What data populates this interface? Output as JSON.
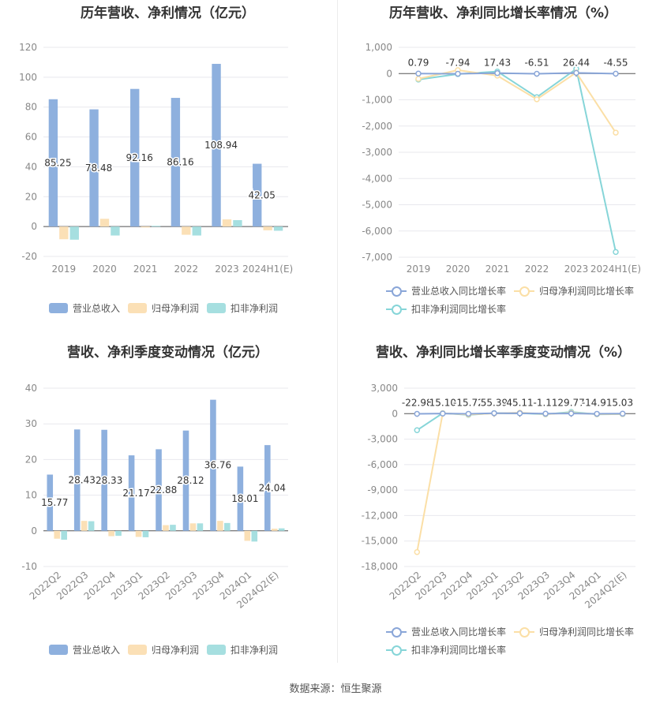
{
  "source": "数据来源：恒生聚源",
  "colors": {
    "revenue": "#8eb0de",
    "net_profit": "#fbe0b6",
    "deducted": "#a6dfe0",
    "rev_line": "#8aa6d8",
    "np_line": "#fbdfa6",
    "dd_line": "#86d5d8",
    "grid": "#e8e8ee",
    "axis_text": "#888888",
    "label": "#333333"
  },
  "legends": {
    "bar": [
      "营业总收入",
      "归母净利润",
      "扣非净利润"
    ],
    "line": [
      "营业总收入同比增长率",
      "归母净利润同比增长率",
      "扣非净利润同比增长率"
    ]
  },
  "chart_data": [
    {
      "type": "bar",
      "title": "历年营收、净利情况（亿元）",
      "categories": [
        "2019",
        "2020",
        "2021",
        "2022",
        "2023",
        "2024H1(E)"
      ],
      "ylim": [
        -20,
        120
      ],
      "yticks": [
        -20,
        0,
        20,
        40,
        60,
        80,
        100,
        120
      ],
      "grid": true,
      "legend_position": "bottom",
      "series": [
        {
          "name": "营业总收入",
          "values": [
            85.25,
            78.48,
            92.16,
            86.16,
            108.94,
            42.05
          ],
          "labels": [
            "85.25",
            "78.48",
            "92.16",
            "86.16",
            "108.94",
            "42.05"
          ]
        },
        {
          "name": "归母净利润",
          "values": [
            -8.5,
            5.2,
            -0.6,
            -5.5,
            4.8,
            -2.5
          ]
        },
        {
          "name": "扣非净利润",
          "values": [
            -8.8,
            -6.0,
            0.5,
            -6.0,
            4.3,
            -2.8
          ]
        }
      ]
    },
    {
      "type": "line",
      "title": "历年营收、净利同比增长率情况（%）",
      "categories": [
        "2019",
        "2020",
        "2021",
        "2022",
        "2023",
        "2024H1(E)"
      ],
      "ylim": [
        -7000,
        1000
      ],
      "yticks": [
        1000,
        0,
        -1000,
        -2000,
        -3000,
        -4000,
        -5000,
        -6000,
        -7000
      ],
      "ytick_labels": [
        "1,000",
        "0",
        "-1,000",
        "-2,000",
        "-3,000",
        "-4,000",
        "-5,000",
        "-6,000",
        "-7,000"
      ],
      "grid": true,
      "legend_position": "bottom",
      "series": [
        {
          "name": "营业总收入同比增长率",
          "values": [
            0.79,
            -7.94,
            17.43,
            -6.51,
            26.44,
            -4.55
          ],
          "labels": [
            "0.79",
            "-7.94",
            "17.43",
            "-6.51",
            "26.44",
            "-4.55"
          ]
        },
        {
          "name": "归母净利润同比增长率",
          "values": [
            -200,
            130,
            -80,
            -980,
            40,
            -2250
          ]
        },
        {
          "name": "扣非净利润同比增长率",
          "values": [
            -230,
            -20,
            80,
            -900,
            180,
            -6800
          ]
        }
      ]
    },
    {
      "type": "bar",
      "title": "营收、净利季度变动情况（亿元）",
      "categories": [
        "2022Q2",
        "2022Q3",
        "2022Q4",
        "2023Q1",
        "2023Q2",
        "2023Q3",
        "2023Q4",
        "2024Q1",
        "2024Q2(E)"
      ],
      "ylim": [
        -10,
        40
      ],
      "yticks": [
        -10,
        0,
        10,
        20,
        30,
        40
      ],
      "grid": true,
      "legend_position": "bottom",
      "series": [
        {
          "name": "营业总收入",
          "values": [
            15.77,
            28.43,
            28.33,
            21.17,
            22.88,
            28.12,
            36.76,
            18.01,
            24.04
          ],
          "labels": [
            "15.77",
            "28.43",
            "28.33",
            "21.17",
            "22.88",
            "28.12",
            "36.76",
            "18.01",
            "24.04"
          ]
        },
        {
          "name": "归母净利润",
          "values": [
            -2.2,
            2.8,
            -1.5,
            -1.7,
            1.6,
            2.1,
            2.8,
            -2.8,
            0.6
          ]
        },
        {
          "name": "扣非净利润",
          "values": [
            -2.5,
            2.7,
            -1.4,
            -1.8,
            1.7,
            2.1,
            2.2,
            -3.0,
            0.7
          ]
        }
      ]
    },
    {
      "type": "line",
      "title": "营收、净利同比增长率季度变动情况（%）",
      "categories": [
        "2022Q2",
        "2022Q3",
        "2022Q4",
        "2023Q1",
        "2023Q2",
        "2023Q3",
        "2023Q4",
        "2024Q1",
        "2024Q2(E)"
      ],
      "ylim": [
        -18000,
        3000
      ],
      "yticks": [
        3000,
        0,
        -3000,
        -6000,
        -9000,
        -12000,
        -15000,
        -18000
      ],
      "ytick_labels": [
        "3,000",
        "0",
        "-3,000",
        "-6,000",
        "-9,000",
        "-12,000",
        "-15,000",
        "-18,000"
      ],
      "grid": true,
      "legend_position": "bottom",
      "series": [
        {
          "name": "营业总收入同比增长率",
          "values": [
            -22.98,
            15.1,
            -15.72,
            55.39,
            45.11,
            -1.11,
            29.77,
            -14.91,
            5.03
          ],
          "labels": [
            "-22.98",
            "15.10",
            "-15.72",
            "55.39",
            "45.11",
            "-1.11",
            "29.77",
            "-14.91",
            "5.03"
          ]
        },
        {
          "name": "归母净利润同比增长率",
          "values": [
            -16300,
            50,
            -100,
            30,
            120,
            -50,
            100,
            -60,
            -40
          ]
        },
        {
          "name": "扣非净利润同比增长率",
          "values": [
            -1950,
            60,
            -150,
            60,
            60,
            -80,
            200,
            -80,
            -60
          ]
        }
      ]
    }
  ]
}
